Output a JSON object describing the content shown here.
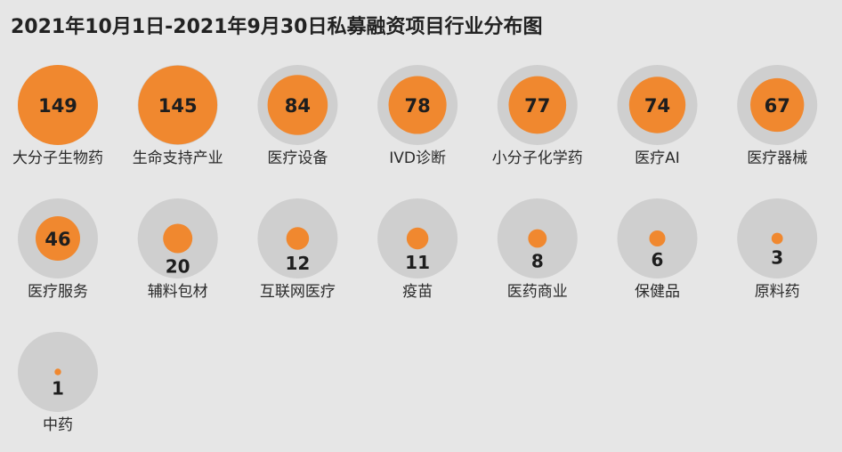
{
  "colors": {
    "background": "#e6e6e6",
    "ring": "#cfcfcf",
    "bubble": "#f0882f",
    "value_text": "#1e1e1e",
    "label_text": "#2a2a2a",
    "title_text": "#222222"
  },
  "chart_data": {
    "type": "bubble",
    "title": "2021年10月1日-2021年9月30日私募融资项目行业分布图",
    "max_value": 149,
    "categories": [
      "大分子生物药",
      "生命支持产业",
      "医疗设备",
      "IVD诊断",
      "小分子化学药",
      "医疗AI",
      "医疗器械",
      "医疗服务",
      "辅料包材",
      "互联网医疗",
      "疫苗",
      "医药商业",
      "保健品",
      "原料药",
      "中药"
    ],
    "values": [
      149,
      145,
      84,
      78,
      77,
      74,
      67,
      46,
      20,
      12,
      11,
      8,
      6,
      3,
      1
    ],
    "value_labels": [
      "149",
      "145",
      "84",
      "78",
      "77",
      "74",
      "67",
      "46",
      "20",
      "12",
      "11",
      "8",
      "6",
      "3",
      "1"
    ]
  }
}
